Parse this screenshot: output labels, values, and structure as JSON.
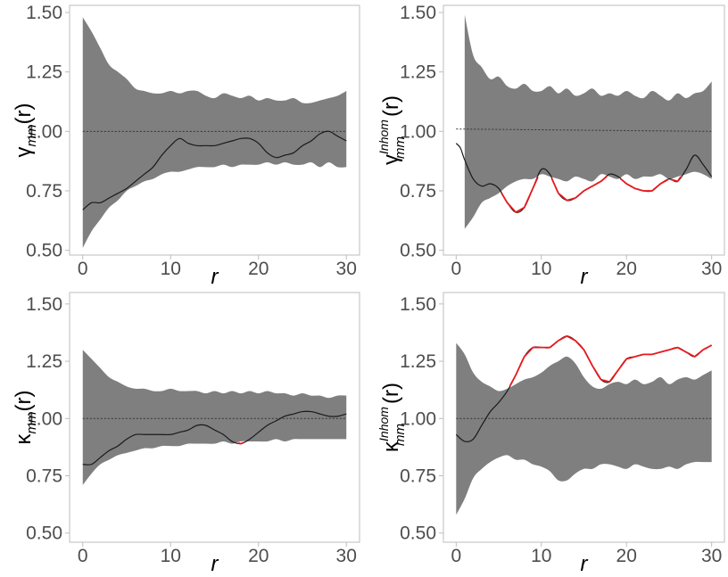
{
  "colors": {
    "band": "#7f7f7f",
    "observed": "#1a1a1a",
    "exceed": "#e8191b",
    "theoretical": "#333333",
    "frame": "#bdbdbd",
    "tick_text": "#4d4d4d"
  },
  "chart_data": [
    {
      "type": "area",
      "panel": "top-left",
      "ylabel": {
        "symbol": "γ",
        "sub": "mm",
        "sup": "",
        "arg": "(r)"
      },
      "xlabel": "r",
      "xlim": [
        -1.5,
        31.5
      ],
      "ylim": [
        0.48,
        1.53
      ],
      "xticks": [
        0,
        10,
        20,
        30
      ],
      "yticks": [
        0.5,
        0.75,
        1.0,
        1.25,
        1.5
      ],
      "ytick_labels": [
        "0.50",
        "0.75",
        "1.00",
        "1.25",
        "1.50"
      ],
      "envelope": {
        "x": [
          0,
          1,
          2,
          3,
          4,
          5,
          6,
          7,
          8,
          9,
          10,
          11,
          12,
          13,
          14,
          15,
          16,
          17,
          18,
          19,
          20,
          21,
          22,
          23,
          24,
          25,
          26,
          27,
          28,
          29,
          30
        ],
        "upper": [
          1.48,
          1.42,
          1.35,
          1.28,
          1.25,
          1.22,
          1.18,
          1.17,
          1.16,
          1.16,
          1.17,
          1.16,
          1.17,
          1.17,
          1.15,
          1.14,
          1.16,
          1.15,
          1.14,
          1.15,
          1.13,
          1.14,
          1.13,
          1.13,
          1.14,
          1.12,
          1.12,
          1.13,
          1.14,
          1.15,
          1.17
        ],
        "lower": [
          0.51,
          0.58,
          0.63,
          0.68,
          0.71,
          0.75,
          0.77,
          0.79,
          0.8,
          0.82,
          0.83,
          0.83,
          0.84,
          0.85,
          0.85,
          0.85,
          0.86,
          0.85,
          0.86,
          0.86,
          0.86,
          0.87,
          0.86,
          0.87,
          0.86,
          0.86,
          0.87,
          0.85,
          0.87,
          0.85,
          0.85
        ]
      },
      "series": [
        {
          "role": "theoretical",
          "style": "dotted",
          "x": [
            0,
            30
          ],
          "y": [
            1.0,
            1.0
          ]
        },
        {
          "role": "observed",
          "x": [
            0,
            1,
            2,
            3,
            4,
            5,
            6,
            7,
            8,
            9,
            10,
            11,
            12,
            13,
            14,
            15,
            16,
            17,
            18,
            19,
            20,
            21,
            22,
            23,
            24,
            25,
            26,
            27,
            28,
            29,
            30
          ],
          "y": [
            0.67,
            0.7,
            0.7,
            0.72,
            0.74,
            0.76,
            0.79,
            0.82,
            0.85,
            0.9,
            0.94,
            0.97,
            0.95,
            0.94,
            0.94,
            0.94,
            0.95,
            0.96,
            0.97,
            0.97,
            0.95,
            0.91,
            0.89,
            0.9,
            0.91,
            0.94,
            0.96,
            0.99,
            1.0,
            0.98,
            0.96
          ]
        }
      ]
    },
    {
      "type": "area",
      "panel": "top-right",
      "ylabel": {
        "symbol": "γ",
        "sub": "mm",
        "sup": "Inhom",
        "arg": "(r)"
      },
      "xlabel": "r",
      "xlim": [
        -1.5,
        31.5
      ],
      "ylim": [
        0.48,
        1.53
      ],
      "xticks": [
        0,
        10,
        20,
        30
      ],
      "yticks": [
        0.5,
        0.75,
        1.0,
        1.25,
        1.5
      ],
      "ytick_labels": [
        "0.50",
        "0.75",
        "1.00",
        "1.25",
        "1.50"
      ],
      "envelope": {
        "x": [
          1,
          2,
          3,
          4,
          5,
          6,
          7,
          8,
          9,
          10,
          11,
          12,
          13,
          14,
          15,
          16,
          17,
          18,
          19,
          20,
          21,
          22,
          23,
          24,
          25,
          26,
          27,
          28,
          29,
          30
        ],
        "upper": [
          1.49,
          1.32,
          1.27,
          1.22,
          1.23,
          1.19,
          1.18,
          1.2,
          1.17,
          1.17,
          1.19,
          1.16,
          1.18,
          1.15,
          1.16,
          1.18,
          1.15,
          1.16,
          1.15,
          1.17,
          1.15,
          1.14,
          1.17,
          1.15,
          1.13,
          1.16,
          1.14,
          1.16,
          1.17,
          1.21
        ],
        "lower": [
          0.59,
          0.64,
          0.7,
          0.72,
          0.74,
          0.77,
          0.79,
          0.8,
          0.8,
          0.82,
          0.81,
          0.8,
          0.79,
          0.81,
          0.8,
          0.79,
          0.82,
          0.81,
          0.8,
          0.82,
          0.8,
          0.81,
          0.81,
          0.82,
          0.8,
          0.81,
          0.82,
          0.83,
          0.82,
          0.8
        ]
      },
      "series": [
        {
          "role": "theoretical",
          "style": "dotted",
          "x": [
            0,
            30
          ],
          "y": [
            1.01,
            1.0
          ]
        },
        {
          "role": "observed",
          "x": [
            0,
            0.5,
            1,
            2,
            3,
            4,
            5,
            6,
            7,
            8,
            9,
            10,
            11,
            12,
            13,
            14,
            15,
            16,
            17,
            18,
            19,
            20,
            21,
            22,
            23,
            24,
            25,
            26,
            27,
            28,
            29,
            30
          ],
          "y": [
            0.95,
            0.93,
            0.88,
            0.8,
            0.77,
            0.78,
            0.76,
            0.7,
            0.66,
            0.68,
            0.76,
            0.84,
            0.82,
            0.74,
            0.71,
            0.72,
            0.75,
            0.77,
            0.79,
            0.82,
            0.81,
            0.78,
            0.76,
            0.75,
            0.75,
            0.78,
            0.8,
            0.79,
            0.84,
            0.9,
            0.86,
            0.81
          ]
        }
      ]
    },
    {
      "type": "area",
      "panel": "bottom-left",
      "ylabel": {
        "symbol": "κ",
        "sub": "mm",
        "sup": "",
        "arg": "(r)"
      },
      "xlabel": "r",
      "xlim": [
        -1.5,
        31.5
      ],
      "ylim": [
        0.46,
        1.55
      ],
      "xticks": [
        0,
        10,
        20,
        30
      ],
      "yticks": [
        0.5,
        0.75,
        1.0,
        1.25,
        1.5
      ],
      "ytick_labels": [
        "0.50",
        "0.75",
        "1.00",
        "1.25",
        "1.50"
      ],
      "envelope": {
        "x": [
          0,
          1,
          2,
          3,
          4,
          5,
          6,
          7,
          8,
          9,
          10,
          11,
          12,
          13,
          14,
          15,
          16,
          17,
          18,
          19,
          20,
          21,
          22,
          23,
          24,
          25,
          26,
          27,
          28,
          29,
          30
        ],
        "upper": [
          1.3,
          1.26,
          1.22,
          1.18,
          1.16,
          1.14,
          1.13,
          1.13,
          1.12,
          1.12,
          1.13,
          1.12,
          1.12,
          1.12,
          1.11,
          1.12,
          1.11,
          1.12,
          1.11,
          1.12,
          1.11,
          1.12,
          1.11,
          1.11,
          1.1,
          1.11,
          1.1,
          1.1,
          1.09,
          1.1,
          1.1
        ],
        "lower": [
          0.71,
          0.76,
          0.8,
          0.82,
          0.84,
          0.85,
          0.86,
          0.87,
          0.87,
          0.88,
          0.88,
          0.88,
          0.89,
          0.89,
          0.89,
          0.89,
          0.9,
          0.89,
          0.9,
          0.9,
          0.9,
          0.9,
          0.91,
          0.9,
          0.91,
          0.91,
          0.91,
          0.91,
          0.91,
          0.91,
          0.91
        ]
      },
      "series": [
        {
          "role": "theoretical",
          "style": "dotted",
          "x": [
            0,
            30
          ],
          "y": [
            1.0,
            1.0
          ]
        },
        {
          "role": "observed",
          "x": [
            0,
            1,
            2,
            3,
            4,
            5,
            6,
            7,
            8,
            9,
            10,
            11,
            12,
            13,
            14,
            15,
            16,
            17,
            18,
            19,
            20,
            21,
            22,
            23,
            24,
            25,
            26,
            27,
            28,
            29,
            30
          ],
          "y": [
            0.8,
            0.8,
            0.83,
            0.86,
            0.88,
            0.91,
            0.93,
            0.93,
            0.93,
            0.93,
            0.93,
            0.94,
            0.95,
            0.97,
            0.97,
            0.95,
            0.93,
            0.9,
            0.89,
            0.91,
            0.94,
            0.97,
            0.99,
            1.01,
            1.02,
            1.03,
            1.03,
            1.02,
            1.01,
            1.01,
            1.02
          ]
        }
      ]
    },
    {
      "type": "area",
      "panel": "bottom-right",
      "ylabel": {
        "symbol": "κ",
        "sub": "mm",
        "sup": "Inhom",
        "arg": "(r)"
      },
      "xlabel": "r",
      "xlim": [
        -1.5,
        31.5
      ],
      "ylim": [
        0.46,
        1.55
      ],
      "xticks": [
        0,
        10,
        20,
        30
      ],
      "yticks": [
        0.5,
        0.75,
        1.0,
        1.25,
        1.5
      ],
      "ytick_labels": [
        "0.50",
        "0.75",
        "1.00",
        "1.25",
        "1.50"
      ],
      "envelope": {
        "x": [
          0,
          1,
          2,
          3,
          4,
          5,
          6,
          7,
          8,
          9,
          10,
          11,
          12,
          13,
          14,
          15,
          16,
          17,
          18,
          19,
          20,
          21,
          22,
          23,
          24,
          25,
          26,
          27,
          28,
          29,
          30
        ],
        "upper": [
          1.33,
          1.28,
          1.2,
          1.16,
          1.14,
          1.12,
          1.13,
          1.15,
          1.17,
          1.18,
          1.2,
          1.23,
          1.25,
          1.27,
          1.24,
          1.18,
          1.14,
          1.13,
          1.15,
          1.16,
          1.15,
          1.17,
          1.15,
          1.16,
          1.18,
          1.15,
          1.17,
          1.18,
          1.17,
          1.19,
          1.21
        ],
        "lower": [
          0.58,
          0.65,
          0.74,
          0.78,
          0.81,
          0.83,
          0.84,
          0.82,
          0.82,
          0.8,
          0.79,
          0.77,
          0.73,
          0.73,
          0.76,
          0.78,
          0.78,
          0.8,
          0.8,
          0.79,
          0.78,
          0.8,
          0.79,
          0.78,
          0.78,
          0.79,
          0.78,
          0.8,
          0.81,
          0.81,
          0.81
        ]
      },
      "series": [
        {
          "role": "theoretical",
          "style": "dotted",
          "x": [
            0,
            30
          ],
          "y": [
            1.0,
            1.0
          ]
        },
        {
          "role": "observed",
          "x": [
            0,
            1,
            2,
            3,
            4,
            5,
            6,
            7,
            8,
            9,
            10,
            11,
            12,
            13,
            14,
            15,
            16,
            17,
            18,
            19,
            20,
            21,
            22,
            23,
            24,
            25,
            26,
            27,
            28,
            29,
            30
          ],
          "y": [
            0.93,
            0.9,
            0.91,
            0.97,
            1.03,
            1.07,
            1.12,
            1.19,
            1.27,
            1.31,
            1.31,
            1.31,
            1.34,
            1.36,
            1.34,
            1.3,
            1.23,
            1.17,
            1.16,
            1.21,
            1.26,
            1.27,
            1.28,
            1.28,
            1.29,
            1.3,
            1.31,
            1.29,
            1.27,
            1.3,
            1.32
          ]
        }
      ]
    }
  ]
}
